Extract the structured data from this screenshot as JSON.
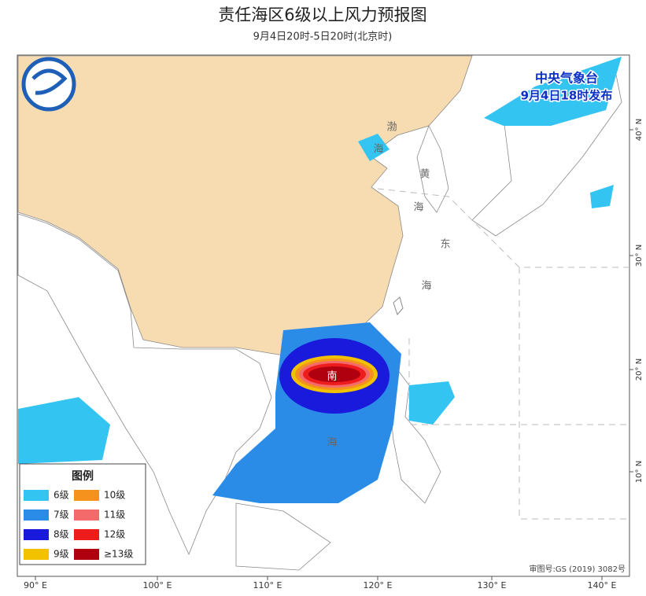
{
  "header": {
    "title": "责任海区6级以上风力预报图",
    "subtitle": "9月4日20时-5日20时(北京时)"
  },
  "publisher": {
    "name": "中央气象台",
    "time": "9月4日18时发布"
  },
  "sea_labels": [
    "渤",
    "海",
    "黄",
    "海",
    "东",
    "海",
    "南",
    "海"
  ],
  "legend": {
    "title": "图例",
    "items": [
      {
        "label": "6级",
        "color": "#33c4f2"
      },
      {
        "label": "7级",
        "color": "#2b8ce8"
      },
      {
        "label": "8级",
        "color": "#1a1adc"
      },
      {
        "label": "9级",
        "color": "#f2c200"
      },
      {
        "label": "10级",
        "color": "#f5921e"
      },
      {
        "label": "11级",
        "color": "#f46a6a"
      },
      {
        "label": "12级",
        "color": "#ee1c1c"
      },
      {
        "label": "≥13级",
        "color": "#b0000f"
      }
    ]
  },
  "lon_labels": [
    "90° E",
    "100° E",
    "110° E",
    "120° E",
    "130° E",
    "140° E"
  ],
  "lat_labels": [
    "10° N",
    "20° N",
    "30° N",
    "40° N"
  ],
  "approval": "审图号:GS (2019) 3082号"
}
